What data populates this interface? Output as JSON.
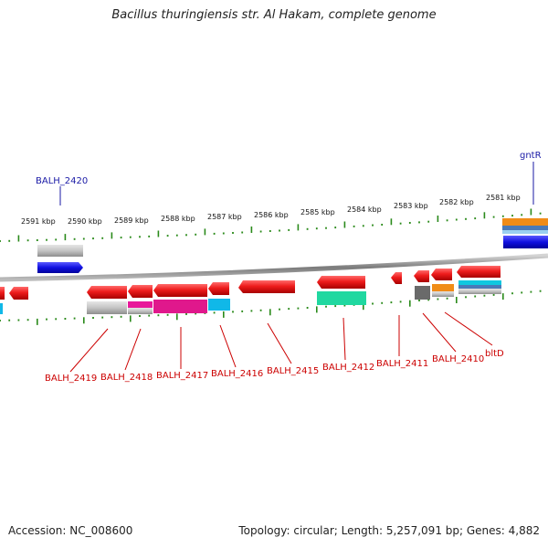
{
  "title": "Bacillus thuringiensis str. Al Hakam, complete genome",
  "footer": {
    "accession": "Accession: NC_008600",
    "summary": "Topology: circular; Length: 5,257,091 bp; Genes: 4,882"
  },
  "kbp_labels": [
    "2591 kbp",
    "2590 kbp",
    "2589 kbp",
    "2588 kbp",
    "2587 kbp",
    "2586 kbp",
    "2585 kbp",
    "2584 kbp",
    "2583 kbp",
    "2582 kbp",
    "2581 kbp"
  ],
  "genes_top": [
    "BALH_2420",
    "gntR"
  ],
  "genes_bottom": [
    "BALH_2419",
    "BALH_2418",
    "BALH_2417",
    "BALH_2416",
    "BALH_2415",
    "BALH_2412",
    "BALH_2411",
    "BALH_2410",
    "bltD"
  ],
  "colors": {
    "tick_green": "#2a8a1a",
    "gene_red": "#e8141c",
    "label_red": "#cc0000",
    "label_blue": "#1a1aa6",
    "backbone": "#8a8a8a"
  }
}
